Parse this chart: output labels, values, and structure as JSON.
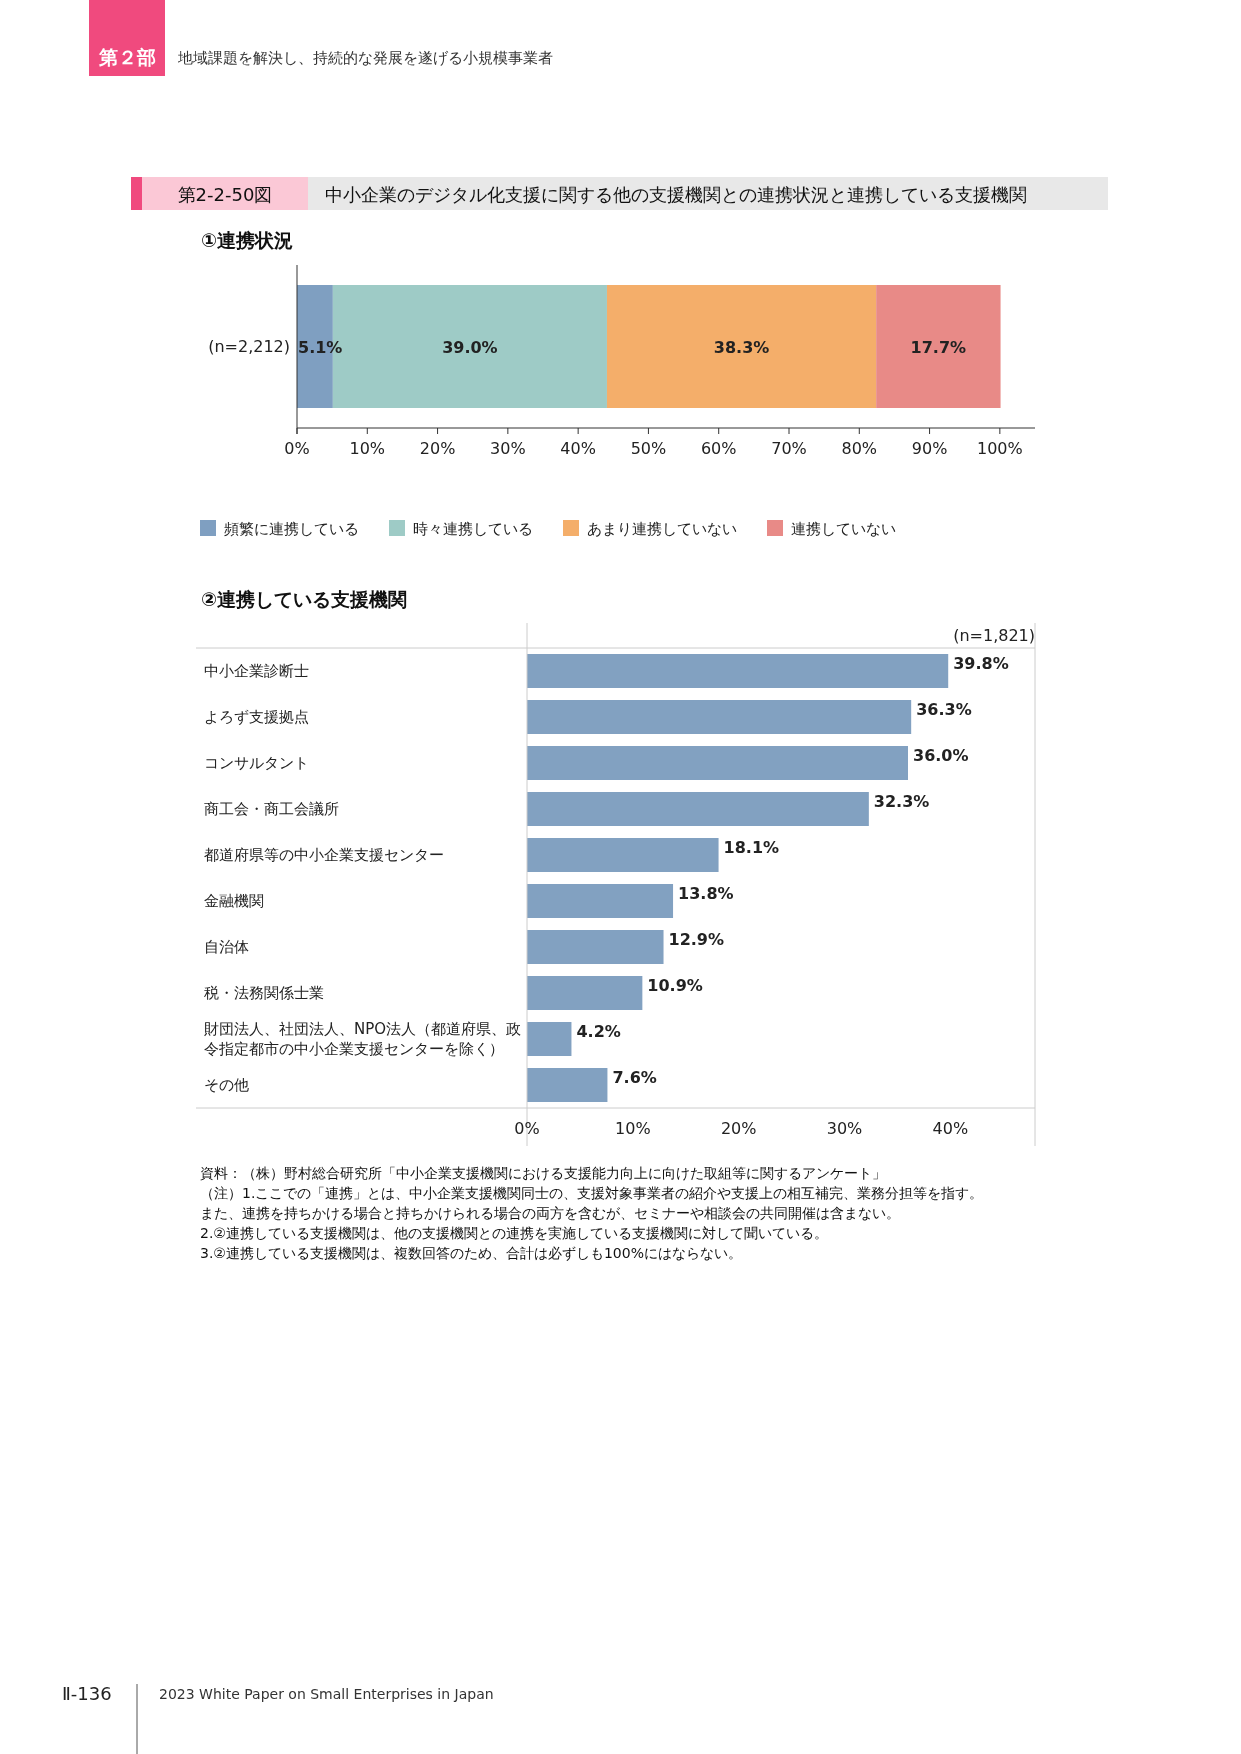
{
  "chart_data": [
    {
      "type": "bar",
      "title": "①連携状況",
      "orientation": "horizontal",
      "stacked": true,
      "categories": [
        "(n=2,212)"
      ],
      "series": [
        {
          "name": "頻繁に連携している",
          "color": "#7f9fc1",
          "values": [
            5.1
          ],
          "value_labels": [
            "5.1%"
          ]
        },
        {
          "name": "時々連携している",
          "color": "#9ecbc6",
          "values": [
            39.0
          ],
          "value_labels": [
            "39.0%"
          ]
        },
        {
          "name": "あまり連携していない",
          "color": "#f4ae6a",
          "values": [
            38.3
          ],
          "value_labels": [
            "38.3%"
          ]
        },
        {
          "name": "連携していない",
          "color": "#e88a87",
          "values": [
            17.7
          ],
          "value_labels": [
            "17.7%"
          ]
        }
      ],
      "xlim": [
        0,
        105
      ],
      "xticks": [
        {
          "value": 0,
          "label": "0%"
        },
        {
          "value": 10,
          "label": "10%"
        },
        {
          "value": 20,
          "label": "20%"
        },
        {
          "value": 30,
          "label": "30%"
        },
        {
          "value": 40,
          "label": "40%"
        },
        {
          "value": 50,
          "label": "50%"
        },
        {
          "value": 60,
          "label": "60%"
        },
        {
          "value": 70,
          "label": "70%"
        },
        {
          "value": 80,
          "label": "80%"
        },
        {
          "value": 90,
          "label": "90%"
        },
        {
          "value": 100,
          "label": "100%"
        }
      ],
      "legend": "bottom",
      "annotations": [
        "第２部",
        "地域課題を解決し、持続的な発展を遂げる小規模事業者",
        "第2-2-50図",
        "中小企業のデジタル化支援に関する他の支援機関との連携状況と連携している支援機関",
        "Ⅱ-136",
        "2023 White Paper on Small Enterprises in Japan"
      ]
    },
    {
      "type": "bar",
      "title": "②連携している支援機関",
      "orientation": "horizontal",
      "categories": [
        "中小企業診断士",
        "よろず支援拠点",
        "コンサルタント",
        "商工会・商工会議所",
        "都道府県等の中小企業支援センター",
        "金融機関",
        "自治体",
        "税・法務関係士業",
        "財団法人、社団法人、NPO法人（都道府県、政令指定都市の中小企業支援センターを除く）",
        "その他"
      ],
      "values": [
        39.8,
        36.3,
        36.0,
        32.3,
        18.1,
        13.8,
        12.9,
        10.9,
        4.2,
        7.6
      ],
      "value_labels": [
        "39.8%",
        "36.3%",
        "36.0%",
        "32.3%",
        "18.1%",
        "13.8%",
        "12.9%",
        "10.9%",
        "4.2%",
        "7.6%"
      ],
      "color": "#82a1c1",
      "xlim": [
        0,
        48
      ],
      "xticks": [
        {
          "value": 0,
          "label": "0%"
        },
        {
          "value": 10,
          "label": "10%"
        },
        {
          "value": 20,
          "label": "20%"
        },
        {
          "value": 30,
          "label": "30%"
        },
        {
          "value": 40,
          "label": "40%"
        }
      ],
      "annotations": [
        "(n=1,821)",
        "資料：（株）野村総合研究所「中小企業支援機関における支援能力向上に向けた取組等に関するアンケート」",
        "（注）1.ここでの「連携」とは、中小企業支援機関同士の、支援対象事業者の紹介や支援上の相互補完、業務分担等を指す。",
        "また、連携を持ちかける場合と持ちかけられる場合の両方を含むが、セミナーや相談会の共同開催は含まない。",
        "2.②連携している支援機関は、他の支援機関との連携を実施している支援機関に対して聞いている。",
        "3.②連携している支援機関は、複数回答のため、合計は必ずしも100%にはならない。"
      ]
    }
  ]
}
